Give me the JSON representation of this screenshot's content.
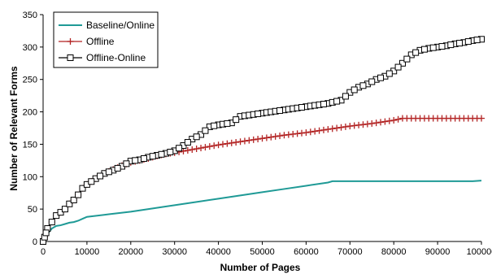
{
  "chart_data": {
    "type": "line",
    "xlabel": "Number of Pages",
    "ylabel": "Number of Relevant Forms",
    "xlim": [
      0,
      100000
    ],
    "ylim": [
      0,
      350
    ],
    "xticks": [
      0,
      10000,
      20000,
      30000,
      40000,
      50000,
      60000,
      70000,
      80000,
      90000,
      100000
    ],
    "yticks": [
      0,
      50,
      100,
      150,
      200,
      250,
      300,
      350
    ],
    "grid": false,
    "legend_position": "top-left",
    "series": [
      {
        "name": "Baseline/Online",
        "color": "#1f9a96",
        "marker": "none",
        "x": [
          0,
          1000,
          2000,
          3000,
          4000,
          5000,
          6000,
          7000,
          8000,
          9000,
          10000,
          15000,
          20000,
          25000,
          30000,
          35000,
          40000,
          45000,
          50000,
          55000,
          60000,
          65000,
          66000,
          70000,
          80000,
          90000,
          98000,
          100000
        ],
        "y": [
          0,
          12,
          20,
          24,
          25,
          27,
          29,
          30,
          32,
          35,
          38,
          42,
          46,
          51,
          56,
          61,
          66,
          71,
          76,
          81,
          86,
          91,
          93,
          93,
          93,
          93,
          93,
          94
        ]
      },
      {
        "name": "Offline",
        "color": "#b22222",
        "marker": "plus",
        "x": [
          0,
          1000,
          2000,
          3000,
          4000,
          5000,
          6000,
          7000,
          8000,
          9000,
          10000,
          12000,
          14000,
          16000,
          18000,
          20000,
          22000,
          24000,
          26000,
          28000,
          30000,
          35000,
          40000,
          45000,
          50000,
          55000,
          60000,
          65000,
          70000,
          75000,
          80000,
          82000,
          85000,
          90000,
          95000,
          100000
        ],
        "y": [
          0,
          20,
          30,
          40,
          45,
          50,
          58,
          64,
          72,
          82,
          88,
          97,
          105,
          111,
          117,
          122,
          125,
          128,
          132,
          135,
          137,
          143,
          149,
          154,
          159,
          164,
          168,
          173,
          178,
          182,
          187,
          190,
          190,
          190,
          190,
          190
        ]
      },
      {
        "name": "Offline-Online",
        "color": "#000000",
        "marker": "square",
        "x": [
          0,
          1000,
          2000,
          3000,
          4000,
          5000,
          6000,
          7000,
          8000,
          9000,
          10000,
          12000,
          14000,
          16000,
          18000,
          20000,
          22000,
          24000,
          26000,
          28000,
          30000,
          32000,
          34000,
          36000,
          38000,
          40000,
          43000,
          45000,
          50000,
          55000,
          60000,
          65000,
          68000,
          70000,
          72000,
          74000,
          76000,
          78000,
          80000,
          82000,
          84000,
          86000,
          88000,
          90000,
          92000,
          94000,
          96000,
          98000,
          100000
        ],
        "y": [
          0,
          20,
          30,
          40,
          45,
          50,
          58,
          64,
          72,
          82,
          88,
          97,
          105,
          110,
          116,
          124,
          126,
          130,
          133,
          136,
          140,
          148,
          158,
          165,
          177,
          180,
          183,
          193,
          198,
          203,
          208,
          213,
          218,
          230,
          238,
          243,
          250,
          255,
          263,
          275,
          288,
          295,
          298,
          300,
          302,
          305,
          307,
          310,
          312
        ]
      }
    ]
  }
}
